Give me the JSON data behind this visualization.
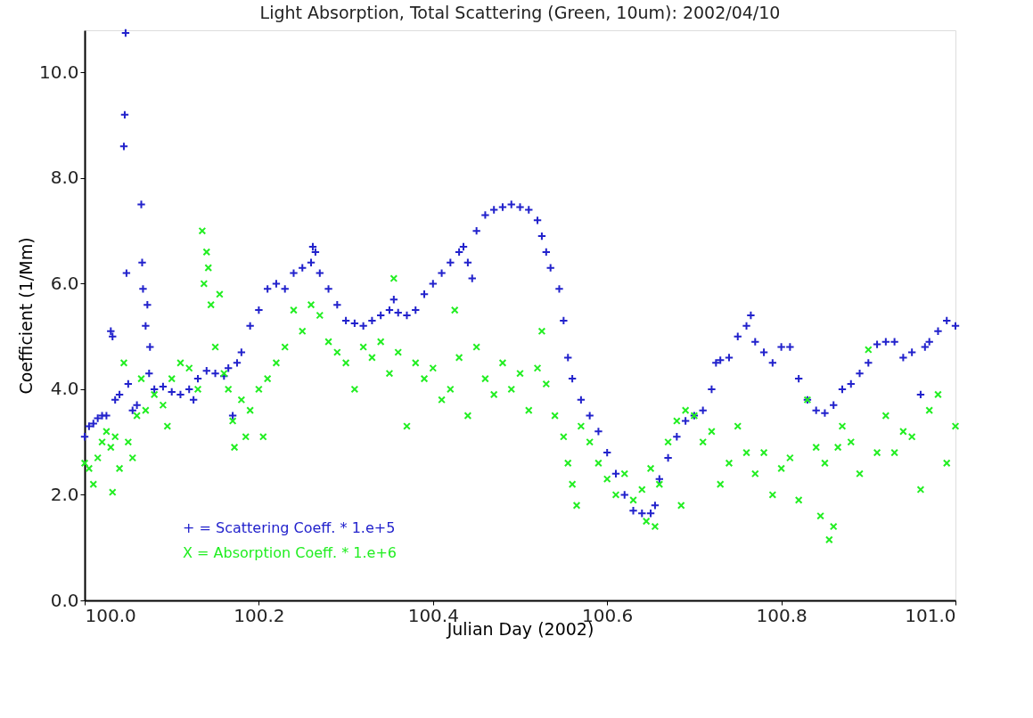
{
  "chart_data": {
    "type": "scatter",
    "title": "Light Absorption, Total Scattering (Green, 10um): 2002/04/10",
    "xlabel": "Julian Day (2002)",
    "ylabel": "Coefficient (1/Mm)",
    "xlim": [
      100.0,
      101.0
    ],
    "xticks": [
      {
        "value": 100.0,
        "label": "100.0"
      },
      {
        "value": 100.2,
        "label": "100.2"
      },
      {
        "value": 100.4,
        "label": "100.4"
      },
      {
        "value": 100.6,
        "label": "100.6"
      },
      {
        "value": 100.8,
        "label": "100.8"
      },
      {
        "value": 101.0,
        "label": "101.0"
      }
    ],
    "ylim": [
      0.0,
      10.8
    ],
    "yticks": [
      {
        "value": 0,
        "label": "0.0"
      },
      {
        "value": 2,
        "label": "2.0"
      },
      {
        "value": 4,
        "label": "4.0"
      },
      {
        "value": 6,
        "label": "6.0"
      },
      {
        "value": 8,
        "label": "8.0"
      },
      {
        "value": 10,
        "label": "10.0"
      }
    ],
    "grid": false,
    "legend": "bottom left",
    "series": [
      {
        "name": "+ = Scattering Coeff. * 1.e+5",
        "color": "#2222cc",
        "marker": "cross",
        "x": [
          100.0,
          100.005,
          100.01,
          100.015,
          100.02,
          100.025,
          100.03,
          100.032,
          100.035,
          100.04,
          100.045,
          100.046,
          100.047,
          100.048,
          100.05,
          100.055,
          100.06,
          100.065,
          100.066,
          100.067,
          100.07,
          100.072,
          100.074,
          100.075,
          100.08,
          100.09,
          100.1,
          100.11,
          100.12,
          100.125,
          100.13,
          100.14,
          100.15,
          100.16,
          100.165,
          100.17,
          100.175,
          100.18,
          100.19,
          100.2,
          100.21,
          100.22,
          100.23,
          100.24,
          100.25,
          100.26,
          100.262,
          100.265,
          100.27,
          100.28,
          100.29,
          100.3,
          100.31,
          100.32,
          100.33,
          100.34,
          100.35,
          100.355,
          100.36,
          100.37,
          100.38,
          100.39,
          100.4,
          100.41,
          100.42,
          100.43,
          100.435,
          100.44,
          100.445,
          100.45,
          100.46,
          100.47,
          100.48,
          100.49,
          100.5,
          100.51,
          100.52,
          100.525,
          100.53,
          100.535,
          100.545,
          100.55,
          100.555,
          100.56,
          100.57,
          100.58,
          100.59,
          100.6,
          100.61,
          100.62,
          100.63,
          100.64,
          100.65,
          100.655,
          100.66,
          100.67,
          100.68,
          100.69,
          100.7,
          100.71,
          100.72,
          100.725,
          100.73,
          100.74,
          100.75,
          100.76,
          100.765,
          100.77,
          100.78,
          100.79,
          100.8,
          100.81,
          100.82,
          100.83,
          100.84,
          100.85,
          100.86,
          100.87,
          100.88,
          100.89,
          100.9,
          100.91,
          100.92,
          100.93,
          100.94,
          100.95,
          100.96,
          100.965,
          100.97,
          100.98,
          100.99,
          101.0
        ],
        "values": [
          3.1,
          3.3,
          3.35,
          3.45,
          3.5,
          3.5,
          5.1,
          5.0,
          3.8,
          3.9,
          8.6,
          9.2,
          10.75,
          6.2,
          4.1,
          3.6,
          3.7,
          7.5,
          6.4,
          5.9,
          5.2,
          5.6,
          4.3,
          4.8,
          4.0,
          4.05,
          3.95,
          3.9,
          4.0,
          3.8,
          4.2,
          4.35,
          4.3,
          4.25,
          4.4,
          3.5,
          4.5,
          4.7,
          5.2,
          5.5,
          5.9,
          6.0,
          5.9,
          6.2,
          6.3,
          6.4,
          6.7,
          6.6,
          6.2,
          5.9,
          5.6,
          5.3,
          5.25,
          5.2,
          5.3,
          5.4,
          5.5,
          5.7,
          5.45,
          5.4,
          5.5,
          5.8,
          6.0,
          6.2,
          6.4,
          6.6,
          6.7,
          6.4,
          6.1,
          7.0,
          7.3,
          7.4,
          7.45,
          7.5,
          7.45,
          7.4,
          7.2,
          6.9,
          6.6,
          6.3,
          5.9,
          5.3,
          4.6,
          4.2,
          3.8,
          3.5,
          3.2,
          2.8,
          2.4,
          2.0,
          1.7,
          1.65,
          1.65,
          1.8,
          2.3,
          2.7,
          3.1,
          3.4,
          3.5,
          3.6,
          4.0,
          4.5,
          4.55,
          4.6,
          5.0,
          5.2,
          5.4,
          4.9,
          4.7,
          4.5,
          4.8,
          4.8,
          4.2,
          3.8,
          3.6,
          3.55,
          3.7,
          4.0,
          4.1,
          4.3,
          4.5,
          4.85,
          4.9,
          4.9,
          4.6,
          4.7,
          3.9,
          4.8,
          4.9,
          5.1,
          5.3,
          5.2
        ]
      },
      {
        "name": "X = Absorption Coeff. * 1.e+6",
        "color": "#22ee22",
        "marker": "x",
        "x": [
          100.0,
          100.005,
          100.01,
          100.015,
          100.02,
          100.025,
          100.03,
          100.032,
          100.035,
          100.04,
          100.045,
          100.05,
          100.055,
          100.06,
          100.065,
          100.07,
          100.08,
          100.09,
          100.095,
          100.1,
          100.11,
          100.12,
          100.13,
          100.135,
          100.137,
          100.14,
          100.142,
          100.145,
          100.15,
          100.155,
          100.16,
          100.165,
          100.17,
          100.172,
          100.18,
          100.185,
          100.19,
          100.2,
          100.205,
          100.21,
          100.22,
          100.23,
          100.24,
          100.25,
          100.26,
          100.27,
          100.28,
          100.29,
          100.3,
          100.31,
          100.32,
          100.33,
          100.34,
          100.35,
          100.355,
          100.36,
          100.37,
          100.38,
          100.39,
          100.4,
          100.41,
          100.42,
          100.425,
          100.43,
          100.44,
          100.45,
          100.46,
          100.47,
          100.48,
          100.49,
          100.5,
          100.51,
          100.52,
          100.525,
          100.53,
          100.54,
          100.55,
          100.555,
          100.56,
          100.565,
          100.57,
          100.58,
          100.59,
          100.6,
          100.61,
          100.62,
          100.63,
          100.64,
          100.645,
          100.65,
          100.655,
          100.66,
          100.67,
          100.68,
          100.685,
          100.69,
          100.7,
          100.71,
          100.72,
          100.73,
          100.74,
          100.75,
          100.76,
          100.77,
          100.78,
          100.79,
          100.8,
          100.81,
          100.82,
          100.83,
          100.84,
          100.845,
          100.85,
          100.855,
          100.86,
          100.865,
          100.87,
          100.88,
          100.89,
          100.9,
          100.91,
          100.92,
          100.93,
          100.94,
          100.95,
          100.96,
          100.97,
          100.98,
          100.99,
          101.0
        ],
        "values": [
          2.6,
          2.5,
          2.2,
          2.7,
          3.0,
          3.2,
          2.9,
          2.05,
          3.1,
          2.5,
          4.5,
          3.0,
          2.7,
          3.5,
          4.2,
          3.6,
          3.9,
          3.7,
          3.3,
          4.2,
          4.5,
          4.4,
          4.0,
          7.0,
          6.0,
          6.6,
          6.3,
          5.6,
          4.8,
          5.8,
          4.3,
          4.0,
          3.4,
          2.9,
          3.8,
          3.1,
          3.6,
          4.0,
          3.1,
          4.2,
          4.5,
          4.8,
          5.5,
          5.1,
          5.6,
          5.4,
          4.9,
          4.7,
          4.5,
          4.0,
          4.8,
          4.6,
          4.9,
          4.3,
          6.1,
          4.7,
          3.3,
          4.5,
          4.2,
          4.4,
          3.8,
          4.0,
          5.5,
          4.6,
          3.5,
          4.8,
          4.2,
          3.9,
          4.5,
          4.0,
          4.3,
          3.6,
          4.4,
          5.1,
          4.1,
          3.5,
          3.1,
          2.6,
          2.2,
          1.8,
          3.3,
          3.0,
          2.6,
          2.3,
          2.0,
          2.4,
          1.9,
          2.1,
          1.5,
          2.5,
          1.4,
          2.2,
          3.0,
          3.4,
          1.8,
          3.6,
          3.5,
          3.0,
          3.2,
          2.2,
          2.6,
          3.3,
          2.8,
          2.4,
          2.8,
          2.0,
          2.5,
          2.7,
          1.9,
          3.8,
          2.9,
          1.6,
          2.6,
          1.15,
          1.4,
          2.9,
          3.3,
          3.0,
          2.4,
          4.75,
          2.8,
          3.5,
          2.8,
          3.2,
          3.1,
          2.1,
          3.6,
          3.9,
          2.6,
          3.3
        ]
      }
    ]
  }
}
